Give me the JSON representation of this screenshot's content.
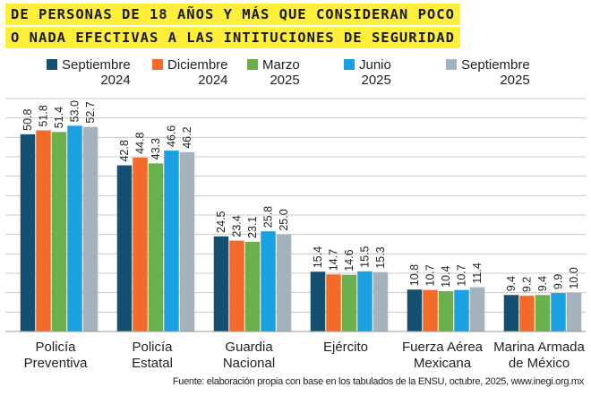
{
  "title": {
    "line1": "DE PERSONAS DE 18 AÑOS Y MÁS QUE CONSIDERAN POCO",
    "line2": "O NADA EFECTIVAS A LAS INTITUCIONES DE SEGURIDAD"
  },
  "legend": [
    {
      "line1": "Septiembre",
      "line2": "2024",
      "color": "#14506f"
    },
    {
      "line1": "Diciembre",
      "line2": "2024",
      "color": "#f26b2b"
    },
    {
      "line1": "Marzo",
      "line2": "2025",
      "color": "#6ab04c"
    },
    {
      "line1": "Junio",
      "line2": "2025",
      "color": "#1ba0e2"
    },
    {
      "line1": "Septiembre",
      "line2": "2025",
      "color": "#a4b3bd"
    }
  ],
  "source": "Fuente: elaboración propia con base en los tabulados de la ENSU, octubre, 2025, www.inegi.org.mx",
  "chart_data": {
    "type": "bar",
    "categories": [
      [
        "Policía",
        "Preventiva"
      ],
      [
        "Policía",
        "Estatal"
      ],
      [
        "Guardia",
        "Nacional"
      ],
      [
        "Ejército"
      ],
      [
        "Fuerza Aérea",
        "Mexicana"
      ],
      [
        "Marina Armada",
        "de México"
      ]
    ],
    "series": [
      {
        "name": "Septiembre 2024",
        "color": "#14506f",
        "values": [
          50.8,
          42.8,
          24.5,
          15.4,
          10.8,
          9.4
        ]
      },
      {
        "name": "Diciembre 2024",
        "color": "#f26b2b",
        "values": [
          51.8,
          44.8,
          23.4,
          14.7,
          10.7,
          9.2
        ]
      },
      {
        "name": "Marzo 2025",
        "color": "#6ab04c",
        "values": [
          51.4,
          43.3,
          23.1,
          14.6,
          10.4,
          9.4
        ]
      },
      {
        "name": "Junio 2025",
        "color": "#1ba0e2",
        "values": [
          53.0,
          46.6,
          25.8,
          15.5,
          10.7,
          9.9
        ]
      },
      {
        "name": "Septiembre 2025",
        "color": "#a4b3bd",
        "values": [
          52.7,
          46.2,
          25.0,
          15.3,
          11.4,
          10.0
        ]
      }
    ],
    "ylim": [
      0,
      60
    ],
    "grid": true,
    "legend_position": "top"
  }
}
